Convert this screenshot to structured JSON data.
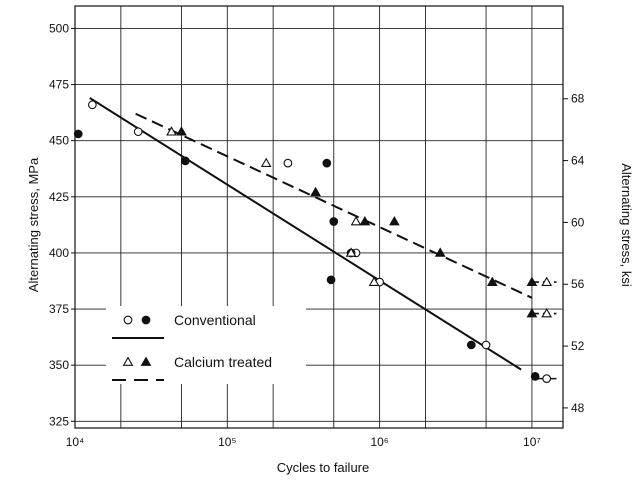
{
  "chart_data": {
    "type": "scatter",
    "title": "",
    "xlabel": "Cycles to failure",
    "ylabel": "Alternating stress, MPa",
    "ylabel_right": "Alternating stress, ksi",
    "x_scale": "log",
    "xlim": [
      10000,
      16000000
    ],
    "ylim": [
      322,
      510
    ],
    "y2lim": [
      46.7,
      74.0
    ],
    "grid": true,
    "x_ticks": [
      {
        "value": 10000,
        "label": "10⁴"
      },
      {
        "value": 100000,
        "label": "10⁵"
      },
      {
        "value": 1000000,
        "label": "10⁶"
      },
      {
        "value": 10000000,
        "label": "10⁷"
      }
    ],
    "y_ticks": [
      325,
      350,
      375,
      400,
      425,
      450,
      475,
      500
    ],
    "y2_ticks": [
      48,
      52,
      56,
      60,
      64,
      68
    ],
    "legend": {
      "position": "bottom-left",
      "entries": [
        {
          "label": "Conventional",
          "markers": [
            "open-circle",
            "filled-circle"
          ],
          "line": "solid"
        },
        {
          "label": "Calcium treated",
          "markers": [
            "open-triangle",
            "filled-triangle"
          ],
          "line": "dashed"
        }
      ]
    },
    "series": [
      {
        "name": "Conventional",
        "marker": "circle",
        "line_style": "solid",
        "open_points": [
          [
            13000,
            466
          ],
          [
            26000,
            454
          ],
          [
            250000,
            440
          ],
          [
            700000,
            400
          ],
          [
            1000000,
            387
          ],
          [
            5000000,
            359
          ],
          [
            12500000,
            344
          ]
        ],
        "filled_points": [
          [
            10500,
            453
          ],
          [
            53000,
            441
          ],
          [
            450000,
            440
          ],
          [
            500000,
            414
          ],
          [
            480000,
            388
          ],
          [
            650000,
            400
          ],
          [
            4000000,
            359
          ],
          [
            10500000,
            345
          ]
        ],
        "fit_line": [
          [
            12500,
            469
          ],
          [
            8500000,
            348
          ]
        ]
      },
      {
        "name": "Calcium treated",
        "marker": "triangle",
        "line_style": "dashed",
        "open_points": [
          [
            43000,
            454
          ],
          [
            180000,
            440
          ],
          [
            700000,
            414
          ],
          [
            650000,
            400
          ],
          [
            920000,
            387
          ],
          [
            12500000,
            387
          ],
          [
            12500000,
            373
          ]
        ],
        "filled_points": [
          [
            50000,
            454
          ],
          [
            380000,
            427
          ],
          [
            800000,
            414
          ],
          [
            1250000,
            414
          ],
          [
            2500000,
            400
          ],
          [
            5500000,
            387
          ],
          [
            10000000,
            387
          ],
          [
            10000000,
            373
          ]
        ],
        "fit_line": [
          [
            25000,
            462
          ],
          [
            10000000,
            380
          ]
        ]
      }
    ],
    "runouts": [
      {
        "series": "Conventional",
        "y": 344,
        "x_start": 10000000,
        "x_end": 14500000,
        "line_style": "solid"
      },
      {
        "series": "Calcium treated",
        "y": 387,
        "x_start": 10000000,
        "x_end": 14500000,
        "line_style": "dashed"
      },
      {
        "series": "Calcium treated",
        "y": 373,
        "x_start": 10000000,
        "x_end": 14500000,
        "line_style": "dashed"
      }
    ]
  }
}
